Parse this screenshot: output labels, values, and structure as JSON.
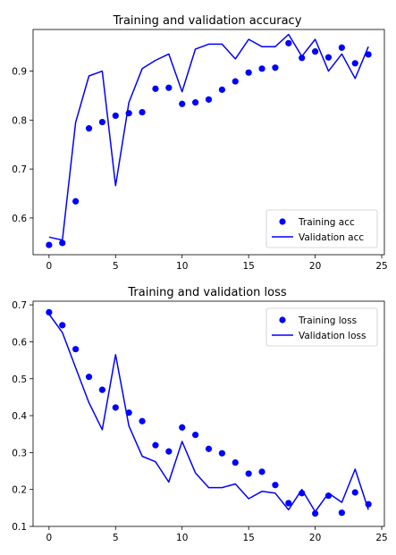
{
  "chart_data": [
    {
      "type": "line",
      "title": "Training and validation accuracy",
      "xlabel": "",
      "ylabel": "",
      "xlim": [
        -1.2,
        25.2
      ],
      "ylim": [
        0.525,
        0.985
      ],
      "xticks": [
        0,
        5,
        10,
        15,
        20,
        25
      ],
      "yticks": [
        0.6,
        0.7,
        0.8,
        0.9
      ],
      "ytick_labels": [
        "0.6",
        "0.7",
        "0.8",
        "0.9"
      ],
      "grid": false,
      "legend_position": "bottom-right",
      "series_color": "#0000ff",
      "x": [
        0,
        1,
        2,
        3,
        4,
        5,
        6,
        7,
        8,
        9,
        10,
        11,
        12,
        13,
        14,
        15,
        16,
        17,
        18,
        19,
        20,
        21,
        22,
        23,
        24
      ],
      "series": [
        {
          "name": "Training acc",
          "style": "points",
          "values": [
            0.545,
            0.549,
            0.634,
            0.783,
            0.796,
            0.809,
            0.814,
            0.816,
            0.864,
            0.866,
            0.833,
            0.836,
            0.842,
            0.862,
            0.879,
            0.897,
            0.905,
            0.907,
            0.957,
            0.927,
            0.94,
            0.928,
            0.948,
            0.916,
            0.934
          ]
        },
        {
          "name": "Validation acc",
          "style": "line",
          "values": [
            0.561,
            0.555,
            0.795,
            0.89,
            0.9,
            0.666,
            0.836,
            0.905,
            0.922,
            0.935,
            0.858,
            0.945,
            0.955,
            0.955,
            0.925,
            0.965,
            0.95,
            0.95,
            0.975,
            0.93,
            0.965,
            0.9,
            0.935,
            0.885,
            0.95
          ]
        }
      ]
    },
    {
      "type": "line",
      "title": "Training and validation loss",
      "xlabel": "",
      "ylabel": "",
      "xlim": [
        -1.2,
        25.2
      ],
      "ylim": [
        0.1,
        0.71
      ],
      "xticks": [
        0,
        5,
        10,
        15,
        20,
        25
      ],
      "yticks": [
        0.1,
        0.2,
        0.3,
        0.4,
        0.5,
        0.6,
        0.7
      ],
      "ytick_labels": [
        "0.1",
        "0.2",
        "0.3",
        "0.4",
        "0.5",
        "0.6",
        "0.7"
      ],
      "grid": false,
      "legend_position": "top-right",
      "series_color": "#0000ff",
      "x": [
        0,
        1,
        2,
        3,
        4,
        5,
        6,
        7,
        8,
        9,
        10,
        11,
        12,
        13,
        14,
        15,
        16,
        17,
        18,
        19,
        20,
        21,
        22,
        23,
        24
      ],
      "series": [
        {
          "name": "Training loss",
          "style": "points",
          "values": [
            0.68,
            0.645,
            0.58,
            0.505,
            0.47,
            0.422,
            0.408,
            0.385,
            0.32,
            0.303,
            0.368,
            0.348,
            0.31,
            0.298,
            0.273,
            0.243,
            0.248,
            0.212,
            0.163,
            0.19,
            0.135,
            0.183,
            0.137,
            0.192,
            0.16
          ]
        },
        {
          "name": "Validation loss",
          "style": "line",
          "values": [
            0.675,
            0.625,
            0.53,
            0.435,
            0.362,
            0.565,
            0.372,
            0.29,
            0.275,
            0.22,
            0.33,
            0.245,
            0.205,
            0.205,
            0.215,
            0.175,
            0.195,
            0.19,
            0.145,
            0.2,
            0.14,
            0.19,
            0.165,
            0.255,
            0.145
          ]
        }
      ]
    }
  ]
}
